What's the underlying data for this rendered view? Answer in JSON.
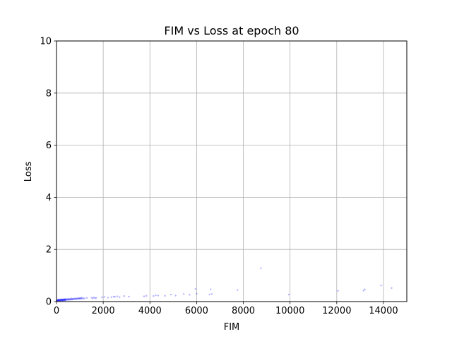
{
  "chart_data": {
    "type": "scatter",
    "title": "FIM vs Loss at epoch 80",
    "xlabel": "FIM",
    "ylabel": "Loss",
    "xlim": [
      0,
      15000
    ],
    "ylim": [
      0,
      10
    ],
    "xticks": [
      0,
      2000,
      4000,
      6000,
      8000,
      10000,
      12000,
      14000
    ],
    "xtick_labels": [
      "0",
      "2000",
      "4000",
      "6000",
      "8000",
      "10000",
      "12000",
      "14000"
    ],
    "yticks": [
      0,
      2,
      4,
      6,
      8,
      10
    ],
    "ytick_labels": [
      "0",
      "2",
      "4",
      "6",
      "8",
      "10"
    ],
    "grid": true,
    "point_color": "#0000ff",
    "point_alpha": 0.3,
    "series": [
      {
        "x": [
          10,
          20,
          30,
          40,
          50,
          60,
          70,
          80,
          90,
          100,
          110,
          120,
          130,
          140,
          150,
          160,
          170,
          180,
          190,
          200,
          210,
          220,
          230,
          240,
          250,
          260,
          270,
          280,
          290,
          300,
          310,
          320,
          330,
          340,
          350,
          360,
          370,
          380,
          390,
          400,
          420,
          440,
          460,
          480,
          500,
          520,
          540,
          560,
          580,
          600,
          620,
          640,
          660,
          680,
          700,
          720,
          750,
          780,
          800,
          820,
          850,
          880,
          900,
          930,
          950,
          980,
          1000,
          1020,
          1050,
          1080,
          1100,
          1150,
          1200,
          1300,
          1500,
          1550,
          1600,
          1650,
          1700,
          1950,
          2050,
          2200,
          2350,
          2450,
          2500,
          2600,
          2700,
          2900,
          3100,
          3750,
          3850,
          4150,
          4250,
          4350,
          4650,
          4900,
          5100,
          5450,
          5700,
          5950,
          6000,
          6550,
          6600,
          6650,
          7750,
          8750,
          9950,
          12050,
          13150,
          13200,
          13900,
          14350
        ],
        "y": [
          0.02,
          0.05,
          0.03,
          0.06,
          0.04,
          0.07,
          0.05,
          0.03,
          0.06,
          0.08,
          0.04,
          0.05,
          0.07,
          0.03,
          0.06,
          0.05,
          0.08,
          0.04,
          0.06,
          0.07,
          0.05,
          0.09,
          0.04,
          0.06,
          0.08,
          0.05,
          0.07,
          0.06,
          0.04,
          0.09,
          0.06,
          0.07,
          0.05,
          0.08,
          0.06,
          0.1,
          0.05,
          0.07,
          0.08,
          0.06,
          0.09,
          0.07,
          0.1,
          0.08,
          0.06,
          0.11,
          0.07,
          0.09,
          0.08,
          0.1,
          0.07,
          0.12,
          0.09,
          0.08,
          0.1,
          0.11,
          0.09,
          0.12,
          0.1,
          0.11,
          0.09,
          0.13,
          0.1,
          0.12,
          0.11,
          0.14,
          0.1,
          0.13,
          0.12,
          0.15,
          0.11,
          0.13,
          0.12,
          0.14,
          0.15,
          0.12,
          0.16,
          0.13,
          0.14,
          0.16,
          0.18,
          0.15,
          0.17,
          0.19,
          0.18,
          0.2,
          0.17,
          0.21,
          0.19,
          0.2,
          0.22,
          0.21,
          0.24,
          0.23,
          0.22,
          0.27,
          0.23,
          0.29,
          0.26,
          0.48,
          0.3,
          0.27,
          0.47,
          0.29,
          0.44,
          1.28,
          0.27,
          0.41,
          0.42,
          0.47,
          0.62,
          0.52
        ]
      }
    ]
  }
}
